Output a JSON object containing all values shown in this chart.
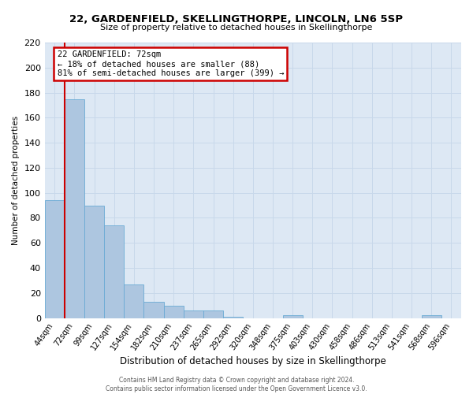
{
  "title1": "22, GARDENFIELD, SKELLINGTHORPE, LINCOLN, LN6 5SP",
  "title2": "Size of property relative to detached houses in Skellingthorpe",
  "xlabel": "Distribution of detached houses by size in Skellingthorpe",
  "ylabel": "Number of detached properties",
  "bar_labels": [
    "44sqm",
    "72sqm",
    "99sqm",
    "127sqm",
    "154sqm",
    "182sqm",
    "210sqm",
    "237sqm",
    "265sqm",
    "292sqm",
    "320sqm",
    "348sqm",
    "375sqm",
    "403sqm",
    "430sqm",
    "458sqm",
    "486sqm",
    "513sqm",
    "541sqm",
    "568sqm",
    "596sqm"
  ],
  "bar_values": [
    94,
    175,
    90,
    74,
    27,
    13,
    10,
    6,
    6,
    1,
    0,
    0,
    2,
    0,
    0,
    0,
    0,
    0,
    0,
    2,
    0
  ],
  "bar_color": "#adc6e0",
  "bar_edge_color": "#6aaad4",
  "grid_color": "#c8d8ea",
  "background_color": "#dde8f4",
  "vline_x_index": 1,
  "vline_color": "#cc0000",
  "annotation_title": "22 GARDENFIELD: 72sqm",
  "annotation_line1": "← 18% of detached houses are smaller (88)",
  "annotation_line2": "81% of semi-detached houses are larger (399) →",
  "annotation_box_color": "#cc0000",
  "ylim": [
    0,
    220
  ],
  "yticks": [
    0,
    20,
    40,
    60,
    80,
    100,
    120,
    140,
    160,
    180,
    200,
    220
  ],
  "footer1": "Contains HM Land Registry data © Crown copyright and database right 2024.",
  "footer2": "Contains public sector information licensed under the Open Government Licence v3.0."
}
